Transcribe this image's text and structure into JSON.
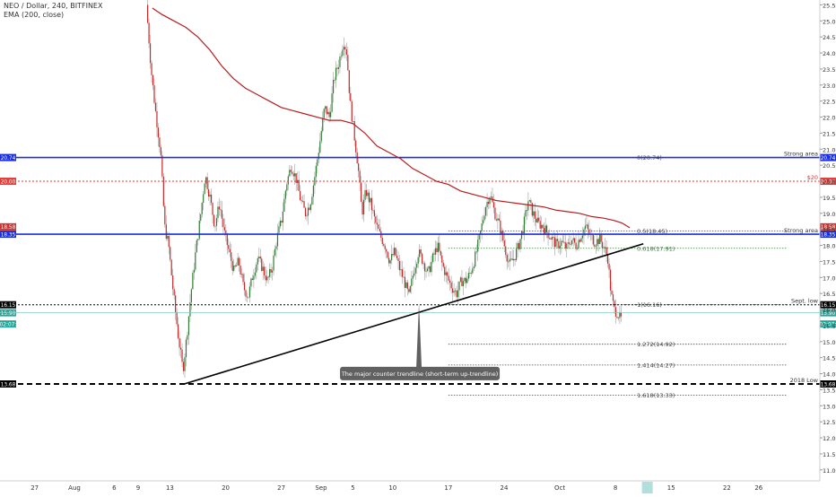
{
  "header": {
    "symbol_line": "NEO / Dollar, 240, BITFINEX",
    "indicator_line": "EMA (200, close)"
  },
  "chart_data": {
    "type": "candlestick",
    "title": "NEO / Dollar, 240, BITFINEX",
    "indicator": "EMA (200, close)",
    "y_axis": {
      "min": 10.5,
      "max": 25.6,
      "ticks": [
        "11.00",
        "11.50",
        "12.00",
        "12.50",
        "13.00",
        "13.50",
        "14.00",
        "14.50",
        "15.00",
        "15.50",
        "16.00",
        "16.50",
        "17.00",
        "17.50",
        "18.00",
        "18.50",
        "19.00",
        "19.50",
        "20.00",
        "20.50",
        "21.00",
        "21.50",
        "22.00",
        "22.50",
        "23.00",
        "23.50",
        "24.00",
        "24.50",
        "25.00",
        "25.50"
      ]
    },
    "x_axis": {
      "labels": [
        {
          "text": "27",
          "day": -5
        },
        {
          "text": "Aug",
          "day": 0
        },
        {
          "text": "6",
          "day": 5
        },
        {
          "text": "9",
          "day": 8
        },
        {
          "text": "13",
          "day": 12
        },
        {
          "text": "20",
          "day": 19
        },
        {
          "text": "27",
          "day": 26
        },
        {
          "text": "Sep",
          "day": 31
        },
        {
          "text": "5",
          "day": 35
        },
        {
          "text": "10",
          "day": 40
        },
        {
          "text": "17",
          "day": 47
        },
        {
          "text": "24",
          "day": 54
        },
        {
          "text": "Oct",
          "day": 61
        },
        {
          "text": "8",
          "day": 68
        },
        {
          "text": "15",
          "day": 75
        },
        {
          "text": "22",
          "day": 82
        },
        {
          "text": "26",
          "day": 86
        }
      ],
      "highlight_day": 72
    },
    "price_path": [
      [
        9.2,
        25.5
      ],
      [
        9.8,
        23.5
      ],
      [
        10.3,
        22.3
      ],
      [
        11.0,
        20.9
      ],
      [
        11.5,
        18.6
      ],
      [
        12.0,
        18.0
      ],
      [
        12.6,
        16.5
      ],
      [
        13.2,
        15.2
      ],
      [
        13.8,
        14.1
      ],
      [
        14.3,
        15.2
      ],
      [
        14.8,
        16.5
      ],
      [
        15.4,
        17.8
      ],
      [
        16.0,
        18.9
      ],
      [
        16.6,
        20.2
      ],
      [
        17.2,
        19.5
      ],
      [
        17.8,
        18.6
      ],
      [
        18.4,
        19.3
      ],
      [
        19.0,
        18.4
      ],
      [
        19.6,
        17.8
      ],
      [
        20.2,
        17.2
      ],
      [
        20.8,
        17.5
      ],
      [
        21.4,
        16.7
      ],
      [
        22.0,
        16.4
      ],
      [
        22.6,
        17.1
      ],
      [
        23.2,
        17.6
      ],
      [
        23.8,
        17.3
      ],
      [
        24.4,
        16.9
      ],
      [
        25.0,
        17.3
      ],
      [
        25.6,
        18.2
      ],
      [
        26.2,
        18.8
      ],
      [
        26.8,
        19.9
      ],
      [
        27.4,
        20.5
      ],
      [
        28.0,
        20.1
      ],
      [
        28.6,
        19.4
      ],
      [
        29.2,
        19.0
      ],
      [
        29.8,
        19.3
      ],
      [
        30.4,
        20.2
      ],
      [
        31.0,
        21.2
      ],
      [
        31.6,
        22.3
      ],
      [
        32.2,
        22.0
      ],
      [
        32.8,
        23.2
      ],
      [
        33.4,
        23.7
      ],
      [
        34.0,
        24.4
      ],
      [
        34.4,
        24.0
      ],
      [
        34.8,
        22.5
      ],
      [
        35.3,
        21.5
      ],
      [
        35.8,
        20.5
      ],
      [
        36.3,
        19.0
      ],
      [
        36.8,
        19.7
      ],
      [
        37.4,
        19.3
      ],
      [
        38.0,
        18.7
      ],
      [
        38.6,
        18.3
      ],
      [
        39.2,
        18.0
      ],
      [
        39.8,
        17.5
      ],
      [
        40.4,
        17.8
      ],
      [
        41.0,
        17.3
      ],
      [
        41.6,
        16.9
      ],
      [
        42.2,
        16.4
      ],
      [
        42.8,
        17.2
      ],
      [
        43.4,
        17.8
      ],
      [
        44.0,
        17.5
      ],
      [
        44.6,
        17.1
      ],
      [
        45.2,
        17.6
      ],
      [
        45.8,
        18.0
      ],
      [
        46.4,
        17.4
      ],
      [
        47.0,
        17.0
      ],
      [
        47.6,
        16.7
      ],
      [
        48.2,
        16.5
      ],
      [
        48.8,
        16.9
      ],
      [
        49.4,
        16.9
      ],
      [
        50.0,
        17.2
      ],
      [
        50.6,
        17.7
      ],
      [
        51.2,
        18.4
      ],
      [
        51.8,
        19.2
      ],
      [
        52.4,
        19.6
      ],
      [
        53.0,
        19.0
      ],
      [
        53.6,
        18.6
      ],
      [
        54.2,
        18.0
      ],
      [
        54.8,
        17.4
      ],
      [
        55.4,
        17.6
      ],
      [
        56.0,
        18.0
      ],
      [
        56.6,
        18.6
      ],
      [
        57.2,
        19.4
      ],
      [
        57.8,
        19.0
      ],
      [
        58.4,
        18.7
      ],
      [
        59.0,
        18.6
      ],
      [
        59.6,
        18.4
      ],
      [
        60.2,
        18.2
      ],
      [
        60.8,
        18.0
      ],
      [
        61.4,
        18.1
      ],
      [
        62.0,
        17.9
      ],
      [
        62.6,
        18.2
      ],
      [
        63.2,
        18.0
      ],
      [
        63.8,
        18.3
      ],
      [
        64.4,
        18.6
      ],
      [
        65.0,
        18.3
      ],
      [
        65.6,
        18.1
      ],
      [
        66.2,
        18.2
      ],
      [
        66.8,
        17.9
      ],
      [
        67.2,
        17.6
      ],
      [
        67.6,
        16.5
      ],
      [
        68.0,
        16.0
      ],
      [
        68.4,
        15.9
      ],
      [
        68.8,
        15.7
      ]
    ],
    "ema_200": [
      [
        9.8,
        25.4
      ],
      [
        11.0,
        25.2
      ],
      [
        12.5,
        25.0
      ],
      [
        14.0,
        24.8
      ],
      [
        15.5,
        24.5
      ],
      [
        17.0,
        24.1
      ],
      [
        18.5,
        23.6
      ],
      [
        20.0,
        23.2
      ],
      [
        21.5,
        22.9
      ],
      [
        23.0,
        22.7
      ],
      [
        24.5,
        22.5
      ],
      [
        26.0,
        22.3
      ],
      [
        27.5,
        22.2
      ],
      [
        29.0,
        22.1
      ],
      [
        30.5,
        22.0
      ],
      [
        32.0,
        21.9
      ],
      [
        33.5,
        21.9
      ],
      [
        35.0,
        21.8
      ],
      [
        36.5,
        21.5
      ],
      [
        38.0,
        21.1
      ],
      [
        39.5,
        20.9
      ],
      [
        41.0,
        20.7
      ],
      [
        42.5,
        20.4
      ],
      [
        44.0,
        20.2
      ],
      [
        45.5,
        20.0
      ],
      [
        47.0,
        19.9
      ],
      [
        48.5,
        19.7
      ],
      [
        50.0,
        19.6
      ],
      [
        51.5,
        19.5
      ],
      [
        53.0,
        19.4
      ],
      [
        54.5,
        19.35
      ],
      [
        56.0,
        19.3
      ],
      [
        57.5,
        19.25
      ],
      [
        59.0,
        19.2
      ],
      [
        60.5,
        19.1
      ],
      [
        62.0,
        19.05
      ],
      [
        63.5,
        19.0
      ],
      [
        65.0,
        18.9
      ],
      [
        66.5,
        18.85
      ],
      [
        67.8,
        18.78
      ],
      [
        68.8,
        18.7
      ],
      [
        69.8,
        18.55
      ]
    ],
    "horizontal_levels": [
      {
        "name": "strong-area-top",
        "value": 20.74,
        "color": "#1a2fe0",
        "style": "solid",
        "label": "Strong area",
        "price_tag": "20.74"
      },
      {
        "name": "level-20",
        "value": 20.0,
        "color": "#e53935",
        "style": "dotted",
        "label": "$20",
        "price_tag": "20.00"
      },
      {
        "name": "strong-area-bottom",
        "value": 18.35,
        "color": "#1a2fe0",
        "style": "solid",
        "label": "Strong area",
        "price_tag": "18.35"
      },
      {
        "name": "sept-low",
        "value": 16.15,
        "color": "#000000",
        "style": "dotted",
        "label": "Sept. low",
        "price_tag": "16.15"
      },
      {
        "name": "low-2018",
        "value": 13.68,
        "color": "#000000",
        "style": "dashed",
        "label": "2018 Low",
        "price_tag": "13.68"
      }
    ],
    "extra_price_tags": [
      {
        "value": 18.58,
        "text": "18.58",
        "color": "#d32f2f"
      },
      {
        "value": 15.9,
        "text": "15.90",
        "color": "#26a69a"
      },
      {
        "value": 15.55,
        "text": "02:07:",
        "color": "#26a69a"
      }
    ],
    "current_price": 15.9,
    "fib_levels": [
      {
        "ratio_label": "0(20.74)",
        "value": 20.74,
        "color": "#444444"
      },
      {
        "ratio_label": "0.5(18.45)",
        "value": 18.45,
        "color": "#444444"
      },
      {
        "ratio_label": "0.618(17.91)",
        "value": 17.91,
        "color": "#2e7d32"
      },
      {
        "ratio_label": "1(16.16)",
        "value": 16.16,
        "color": "#444444"
      },
      {
        "ratio_label": "1.272(14.92)",
        "value": 14.92,
        "color": "#444444"
      },
      {
        "ratio_label": "1.414(14.27)",
        "value": 14.27,
        "color": "#444444"
      },
      {
        "ratio_label": "1.618(13.33)",
        "value": 13.33,
        "color": "#444444"
      }
    ],
    "trendline": {
      "from": [
        13.8,
        13.68
      ],
      "to": [
        71.5,
        18.05
      ]
    },
    "annotation": {
      "text": "The major counter trendline (short-term up-trendline)",
      "pointer": [
        43.3,
        16.2
      ],
      "anchor": [
        43.3,
        14.3
      ]
    },
    "colors": {
      "bull": "#2e7d32",
      "bear": "#c62828",
      "wick": "#9e9e9e",
      "ema": "#b71c1c",
      "axis_text": "#333333"
    }
  }
}
